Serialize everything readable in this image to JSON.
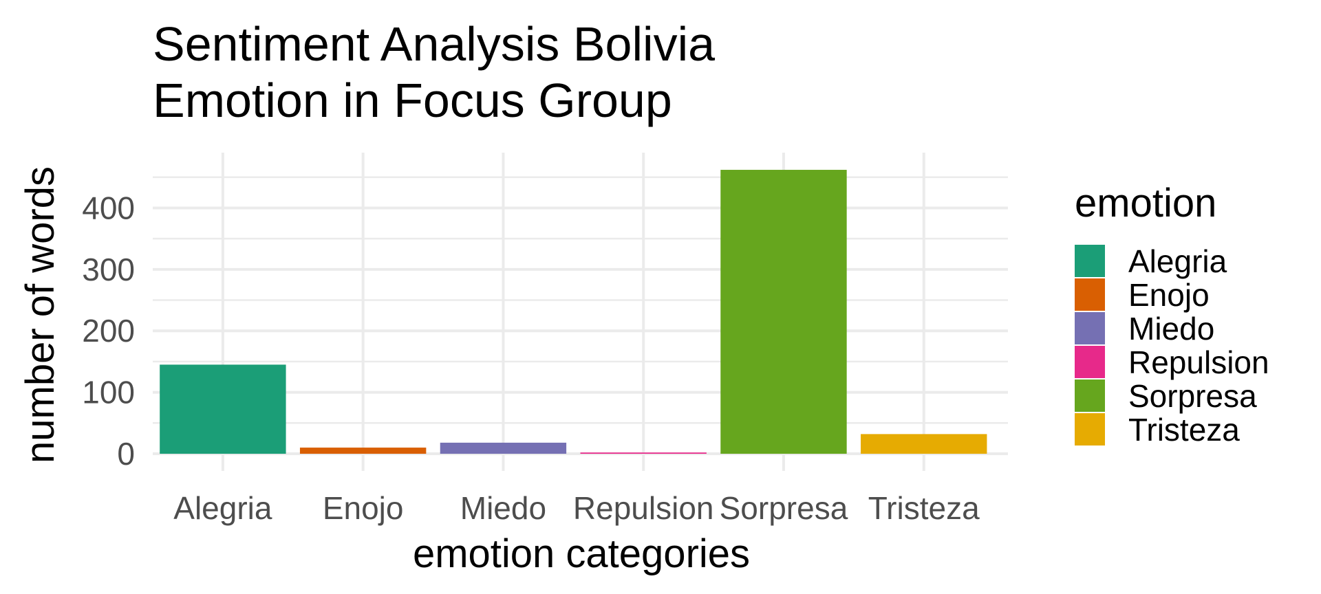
{
  "chart_data": {
    "type": "bar",
    "title_lines": [
      "Sentiment Analysis Bolivia",
      "Emotion in Focus Group"
    ],
    "xlabel": "emotion categories",
    "ylabel": "number of words",
    "categories": [
      "Alegria",
      "Enojo",
      "Miedo",
      "Repulsion",
      "Sorpresa",
      "Tristeza"
    ],
    "values": [
      145,
      10,
      18,
      2,
      462,
      32
    ],
    "colors": [
      "#1b9e77",
      "#d95f02",
      "#7570b3",
      "#e7298a",
      "#66a61e",
      "#e6ab02"
    ],
    "ylim": [
      0,
      490
    ],
    "yticks": [
      0,
      100,
      200,
      300,
      400
    ],
    "ytick_labels": [
      "0",
      "100",
      "200",
      "300",
      "400"
    ],
    "grid": true,
    "legend": {
      "title": "emotion",
      "position": "right",
      "items": [
        "Alegria",
        "Enojo",
        "Miedo",
        "Repulsion",
        "Sorpresa",
        "Tristeza"
      ]
    }
  }
}
